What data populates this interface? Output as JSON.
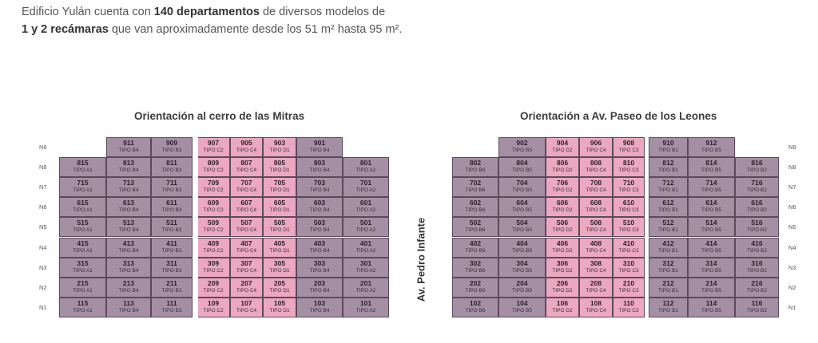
{
  "intro": {
    "line1_pre": "Edificio Yulán cuenta con ",
    "line1_bold": "140 departamentos",
    "line1_post": " de diversos modelos de",
    "line2_bold": "1 y 2 recámaras",
    "line2_post": " que van aproximadamente desde los 51 m² hasta 95 m²."
  },
  "left_panel": {
    "title": "Orientación al cerro de las Mitras",
    "levels": [
      "N9",
      "N8",
      "N7",
      "N6",
      "N5",
      "N4",
      "N3",
      "N2",
      "N1"
    ],
    "top_row": [
      {
        "num": "911",
        "tipo": "TIPO B4",
        "color": "purple"
      },
      {
        "num": "909",
        "tipo": "TIPO B3",
        "color": "purple"
      },
      {
        "num": "907",
        "tipo": "TIPO C2",
        "color": "pink"
      },
      {
        "num": "905",
        "tipo": "TIPO C4",
        "color": "pink"
      },
      {
        "num": "903",
        "tipo": "TIPO D1",
        "color": "pink"
      },
      {
        "num": "901",
        "tipo": "TIPO B4",
        "color": "purple"
      }
    ],
    "columns": [
      {
        "suffix": "15",
        "tipo": "TIPO A1",
        "color": "purple"
      },
      {
        "suffix": "13",
        "tipo": "TIPO B4",
        "color": "purple"
      },
      {
        "suffix": "11",
        "tipo": "TIPO B3",
        "color": "purple"
      },
      {
        "suffix": "09",
        "tipo": "TIPO C2",
        "color": "pink"
      },
      {
        "suffix": "07",
        "tipo": "TIPO C4",
        "color": "pink"
      },
      {
        "suffix": "05",
        "tipo": "TIPO D1",
        "color": "pink"
      },
      {
        "suffix": "03",
        "tipo": "TIPO B4",
        "color": "purple"
      },
      {
        "suffix": "01",
        "tipo": "TIPO A2",
        "color": "purple"
      }
    ]
  },
  "right_panel": {
    "title": "Orientación a Av. Paseo de los Leones",
    "levels": [
      "N9",
      "N8",
      "N7",
      "N6",
      "N5",
      "N4",
      "N3",
      "N2",
      "N1"
    ],
    "top_row": [
      {
        "num": "902",
        "tipo": "TIPO B5",
        "color": "purple"
      },
      {
        "num": "904",
        "tipo": "TIPO D2",
        "color": "pink"
      },
      {
        "num": "906",
        "tipo": "TIPO C4",
        "color": "pink"
      },
      {
        "num": "908",
        "tipo": "TIPO C3",
        "color": "pink"
      },
      {
        "num": "910",
        "tipo": "TIPO B1",
        "color": "purple"
      },
      {
        "num": "912",
        "tipo": "TIPO B5",
        "color": "purple"
      }
    ],
    "columns": [
      {
        "suffix": "02",
        "tipo": "TIPO B6",
        "color": "purple"
      },
      {
        "suffix": "04",
        "tipo": "TIPO B5",
        "color": "purple"
      },
      {
        "suffix": "06",
        "tipo": "TIPO D2",
        "color": "pink"
      },
      {
        "suffix": "08",
        "tipo": "TIPO C4",
        "color": "pink"
      },
      {
        "suffix": "10",
        "tipo": "TIPO C3",
        "color": "pink"
      },
      {
        "suffix": "12",
        "tipo": "TIPO B1",
        "color": "purple"
      },
      {
        "suffix": "14",
        "tipo": "TIPO B5",
        "color": "purple"
      },
      {
        "suffix": "16",
        "tipo": "TIPO B2",
        "color": "purple"
      }
    ]
  },
  "street_label": "Av. Pedro Infante"
}
